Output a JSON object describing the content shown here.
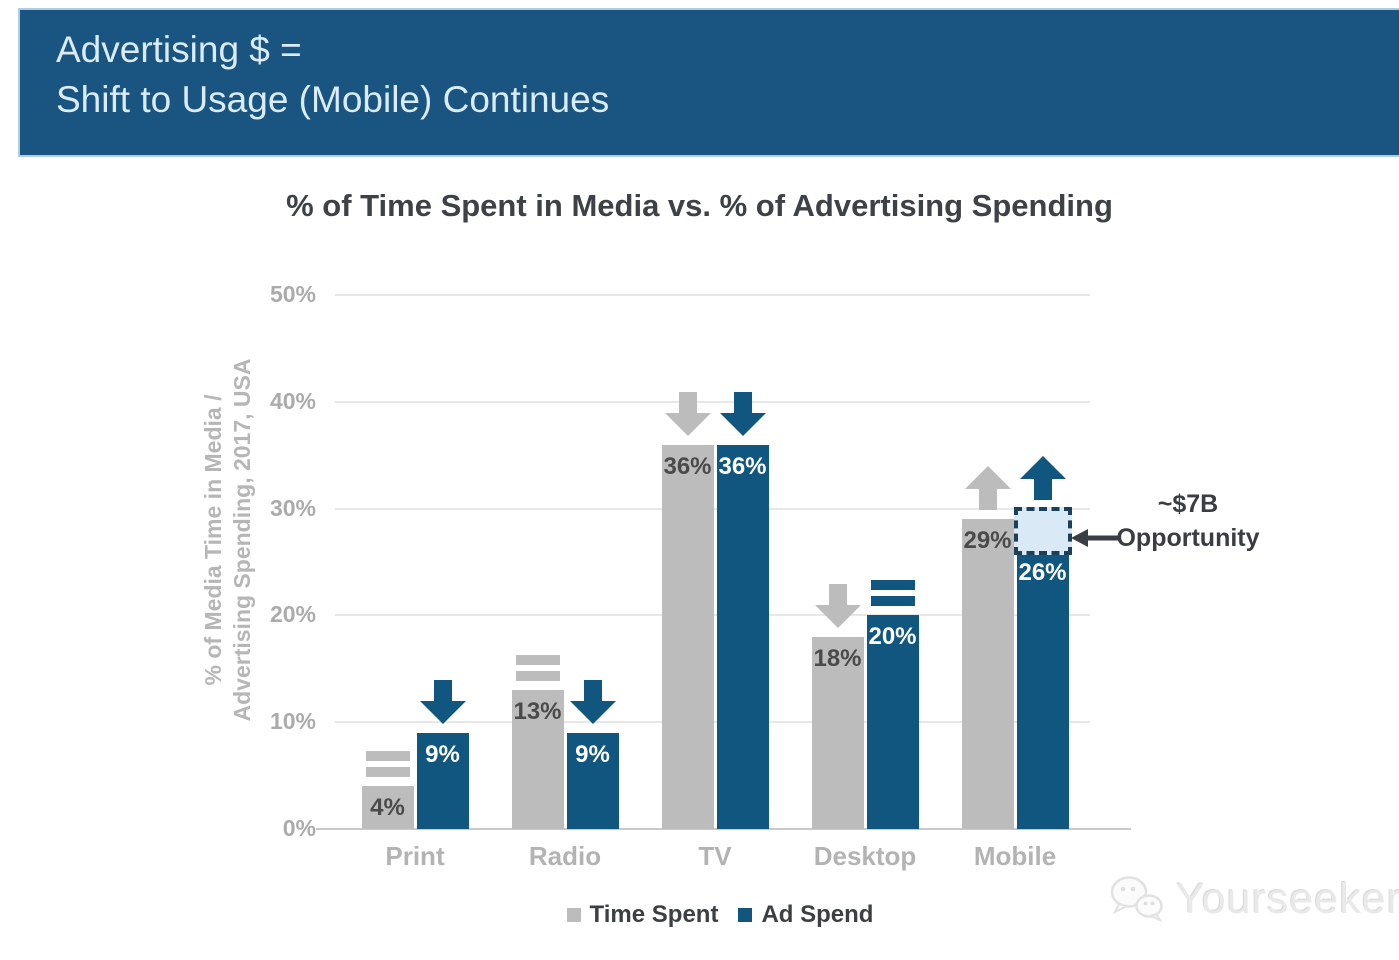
{
  "header": {
    "line1": "Advertising $ =",
    "line2": "Shift to Usage (Mobile) Continues"
  },
  "chart_data": {
    "type": "bar",
    "title": "% of Time Spent in Media vs. % of Advertising Spending",
    "categories": [
      "Print",
      "Radio",
      "TV",
      "Desktop",
      "Mobile"
    ],
    "series": [
      {
        "name": "Time Spent",
        "color": "#bcbcbc",
        "values": [
          4,
          13,
          36,
          18,
          29
        ],
        "labels": [
          "4%",
          "13%",
          "36%",
          "18%",
          "29%"
        ],
        "label_color": "#4a4a4a",
        "trend": [
          "equal",
          "equal",
          "down",
          "down",
          "up"
        ]
      },
      {
        "name": "Ad Spend",
        "color": "#11567e",
        "values": [
          9,
          9,
          36,
          20,
          26
        ],
        "labels": [
          "9%",
          "9%",
          "36%",
          "20%",
          "26%"
        ],
        "label_color": "#ffffff",
        "trend": [
          "down",
          "down",
          "down",
          "equal",
          "up"
        ]
      }
    ],
    "ylabel_line1": "% of Media Time in Media /",
    "ylabel_line2": "Advertising Spending, 2017, USA",
    "yticks": [
      0,
      10,
      20,
      30,
      40,
      50
    ],
    "ytick_labels": [
      "0%",
      "10%",
      "20%",
      "30%",
      "40%",
      "50%"
    ],
    "ylim": [
      0,
      50
    ],
    "grid": true,
    "legend_position": "bottom",
    "annotation": {
      "line1": "~$7B",
      "line2": "Opportunity",
      "target_category": "Mobile",
      "target_series": "Ad Spend",
      "box_from_pct": 26,
      "box_to_pct": 30,
      "box_fill": "#d9eaf6",
      "box_border": "#1d4059"
    }
  },
  "legend": [
    {
      "label": "Time Spent",
      "color": "#bcbcbc"
    },
    {
      "label": "Ad Spend",
      "color": "#11567e"
    }
  ],
  "watermark": {
    "text": "Yourseeker"
  },
  "colors": {
    "banner_bg": "#1a5480",
    "banner_text": "#d9ecf8",
    "bar_gray": "#bcbcbc",
    "bar_blue": "#11567e",
    "gridline": "#e7e7e7",
    "axis_line": "#c9c9c9",
    "tick_text": "#ababab",
    "title_text": "#3e4247"
  }
}
